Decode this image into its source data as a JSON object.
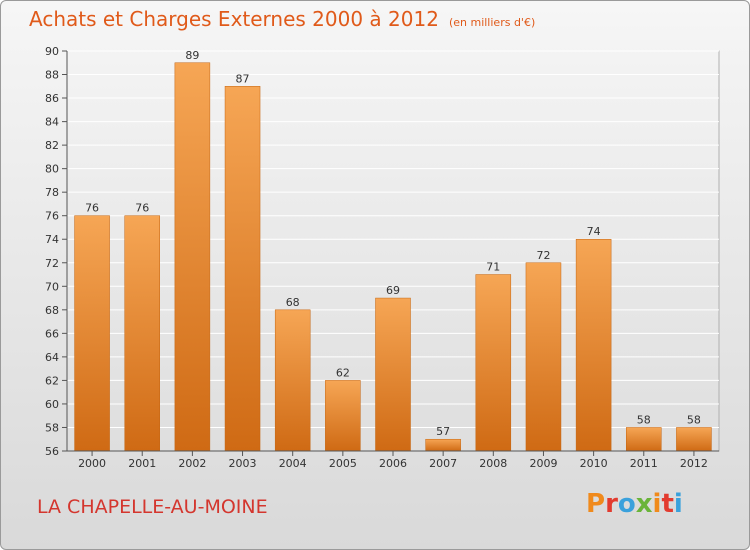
{
  "title": "Achats et Charges Externes 2000 à 2012",
  "unit_note": "(en milliers d'€)",
  "commune": "LA CHAPELLE-AU-MOINE",
  "logo": {
    "text": "Proxiti",
    "colors": [
      "#f08a1c",
      "#e23b2f",
      "#3aa1dc",
      "#6ab43a",
      "#f08a1c",
      "#e23b2f",
      "#3aa1dc"
    ]
  },
  "colors": {
    "bar_light": "#f6a655",
    "bar_dark": "#cf6a14",
    "title": "#e05a1a",
    "commune": "#d4362e",
    "grid": "#ffffff"
  },
  "chart_data": {
    "type": "bar",
    "categories": [
      "2000",
      "2001",
      "2002",
      "2003",
      "2004",
      "2005",
      "2006",
      "2007",
      "2008",
      "2009",
      "2010",
      "2011",
      "2012"
    ],
    "values": [
      76,
      76,
      89,
      87,
      68,
      62,
      69,
      57,
      71,
      72,
      74,
      58,
      58
    ],
    "data_labels": [
      "76",
      "76",
      "89",
      "87",
      "68",
      "62",
      "69",
      "57",
      "71",
      "72",
      "74",
      "58",
      "58"
    ],
    "ylim": [
      56,
      90
    ],
    "yticks": [
      56,
      58,
      60,
      62,
      64,
      66,
      68,
      70,
      72,
      74,
      76,
      78,
      80,
      82,
      84,
      86,
      88,
      90
    ],
    "grid": true,
    "xlabel": "",
    "ylabel": ""
  }
}
